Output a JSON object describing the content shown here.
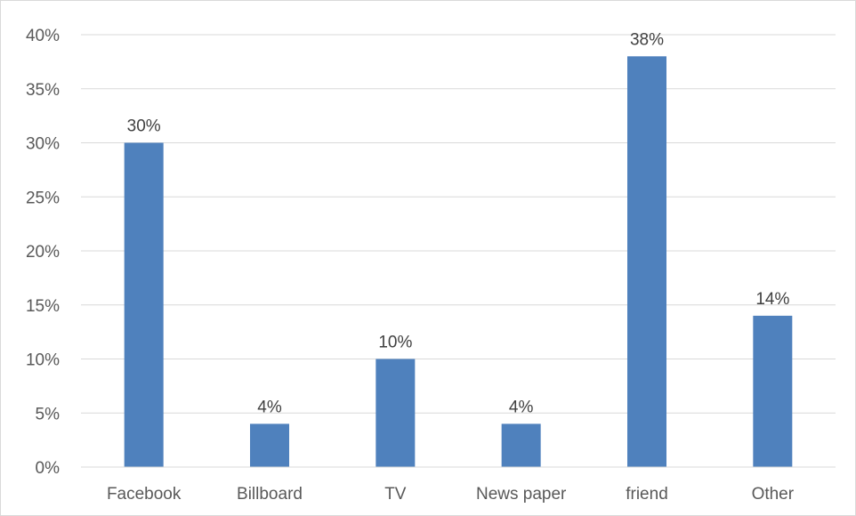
{
  "chart_data": {
    "type": "bar",
    "categories": [
      "Facebook",
      "Billboard",
      "TV",
      "News paper",
      "friend",
      "Other"
    ],
    "values": [
      30,
      4,
      10,
      4,
      38,
      14
    ],
    "data_labels": [
      "30%",
      "4%",
      "10%",
      "4%",
      "38%",
      "14%"
    ],
    "y_ticks": [
      0,
      5,
      10,
      15,
      20,
      25,
      30,
      35,
      40
    ],
    "y_tick_labels": [
      "0%",
      "5%",
      "10%",
      "15%",
      "20%",
      "25%",
      "30%",
      "35%",
      "40%"
    ],
    "ylim": [
      0,
      40
    ],
    "grid": true,
    "legend": "none",
    "bar_color": "#4f81bd",
    "grid_color": "#d9d9d9",
    "title": "",
    "xlabel": "",
    "ylabel": ""
  }
}
